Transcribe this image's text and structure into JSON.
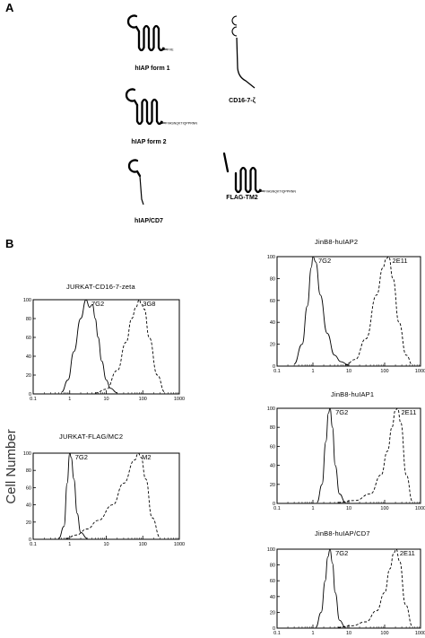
{
  "panel_a": {
    "letter": "A",
    "constructs": [
      {
        "id": "hiap1",
        "name": "hIAP form 1",
        "tail_seq": "FVE",
        "loop": true,
        "tm_segments": 5,
        "stalk": false,
        "extra_loops": 0
      },
      {
        "id": "cd16",
        "name": "CD16-7-ζ",
        "tail_seq": "",
        "loop": false,
        "tm_segments": 0,
        "stalk": true,
        "extra_loops": 2
      },
      {
        "id": "hiap2",
        "name": "hIAP form 2",
        "tail_seq": "FVASNQKTIQPPRNN",
        "loop": true,
        "tm_segments": 5,
        "stalk": false,
        "extra_loops": 0
      },
      {
        "id": "flag",
        "name": "FLAG-TM2",
        "tail_seq": "FVASNQKTIQPPRNN",
        "loop": false,
        "tm_segments": 5,
        "stalk": false,
        "extra_loops": 0
      },
      {
        "id": "hiapcd7",
        "name": "hIAP/CD7",
        "tail_seq": "",
        "loop": true,
        "tm_segments": 0,
        "stalk": true,
        "extra_loops": 0
      }
    ]
  },
  "panel_b": {
    "letter": "B",
    "y_axis_label": "Cell Number"
  },
  "chart_data": [
    {
      "id": "jurkat_cd16",
      "type": "line",
      "title": "JURKAT-CD16-7-zeta",
      "xscale": "log",
      "xlim": [
        0.1,
        1000
      ],
      "ylim": [
        0,
        100
      ],
      "xticks": [
        "0.1",
        "1",
        "10",
        "100",
        "1000"
      ],
      "yticks": [
        "0",
        "20",
        "40",
        "60",
        "80",
        "100"
      ],
      "series": [
        {
          "name": "7G2",
          "style": "solid",
          "x": [
            0.6,
            0.9,
            1.3,
            2.0,
            2.8,
            3.5,
            4.2,
            5.0,
            6.0,
            7.5,
            10,
            13,
            20
          ],
          "y": [
            2,
            15,
            45,
            80,
            100,
            92,
            95,
            80,
            60,
            35,
            15,
            6,
            1
          ]
        },
        {
          "name": "3G8",
          "style": "dashed",
          "x": [
            5,
            10,
            20,
            35,
            50,
            65,
            80,
            90,
            110,
            150,
            250,
            400
          ],
          "y": [
            1,
            5,
            25,
            55,
            80,
            92,
            100,
            96,
            90,
            60,
            20,
            2
          ]
        }
      ]
    },
    {
      "id": "jurkat_flag",
      "type": "line",
      "title": "JURKAT-FLAG/MC2",
      "xscale": "log",
      "xlim": [
        0.1,
        1000
      ],
      "ylim": [
        0,
        100
      ],
      "xticks": [
        "0.1",
        "1",
        "10",
        "100",
        "1000"
      ],
      "yticks": [
        "0",
        "20",
        "40",
        "60",
        "80",
        "100"
      ],
      "series": [
        {
          "name": "7G2",
          "style": "solid",
          "x": [
            0.5,
            0.7,
            0.85,
            1.0,
            1.1,
            1.3,
            1.6,
            2.0,
            3.0
          ],
          "y": [
            1,
            15,
            65,
            100,
            95,
            70,
            30,
            8,
            1
          ]
        },
        {
          "name": "M2",
          "style": "dashed",
          "x": [
            0.8,
            1.5,
            3,
            6,
            15,
            30,
            60,
            75,
            90,
            120,
            180,
            300
          ],
          "y": [
            1,
            5,
            12,
            22,
            40,
            65,
            92,
            100,
            95,
            70,
            25,
            2
          ]
        }
      ]
    },
    {
      "id": "jinb8_2",
      "type": "line",
      "title": "JinB8-huIAP2",
      "xscale": "log",
      "xlim": [
        0.1,
        1000
      ],
      "ylim": [
        0,
        100
      ],
      "xticks": [
        "0.1",
        "1",
        "10",
        "100",
        "1000"
      ],
      "yticks": [
        "0",
        "20",
        "40",
        "60",
        "80",
        "100"
      ],
      "series": [
        {
          "name": "7G2",
          "style": "solid",
          "x": [
            0.3,
            0.5,
            0.7,
            0.9,
            1.0,
            1.2,
            1.6,
            2.5,
            4,
            6,
            10
          ],
          "y": [
            2,
            20,
            55,
            90,
            100,
            95,
            65,
            30,
            10,
            4,
            1
          ]
        },
        {
          "name": "2E11",
          "style": "dashed",
          "x": [
            8,
            15,
            30,
            60,
            90,
            110,
            130,
            170,
            250,
            400,
            600
          ],
          "y": [
            1,
            6,
            25,
            65,
            90,
            98,
            100,
            80,
            40,
            10,
            1
          ]
        }
      ]
    },
    {
      "id": "jinb8_1",
      "type": "line",
      "title": "JinB8-huIAP1",
      "xscale": "log",
      "xlim": [
        0.1,
        1000
      ],
      "ylim": [
        0,
        100
      ],
      "xticks": [
        "0.1",
        "1",
        "10",
        "100",
        "1000"
      ],
      "yticks": [
        "0",
        "20",
        "40",
        "60",
        "80",
        "100"
      ],
      "series": [
        {
          "name": "7G2",
          "style": "solid",
          "x": [
            1.3,
            1.8,
            2.3,
            2.7,
            3.0,
            3.5,
            4.2,
            5.5,
            8
          ],
          "y": [
            1,
            20,
            65,
            95,
            100,
            80,
            40,
            10,
            1
          ]
        },
        {
          "name": "2E11",
          "style": "dashed",
          "x": [
            5,
            15,
            40,
            80,
            120,
            160,
            200,
            230,
            280,
            400,
            600
          ],
          "y": [
            1,
            3,
            10,
            30,
            55,
            80,
            98,
            100,
            85,
            30,
            2
          ]
        }
      ]
    },
    {
      "id": "jinb8_cd7",
      "type": "line",
      "title": "JinB8-huIAP/CD7",
      "xscale": "log",
      "xlim": [
        0.1,
        1000
      ],
      "ylim": [
        0,
        100
      ],
      "xticks": [
        "0.1",
        "1",
        "10",
        "100",
        "1000"
      ],
      "yticks": [
        "0",
        "20",
        "40",
        "60",
        "80",
        "100"
      ],
      "series": [
        {
          "name": "7G2",
          "style": "solid",
          "x": [
            1.2,
            1.7,
            2.2,
            2.6,
            3.0,
            3.5,
            4.2,
            5.5,
            8
          ],
          "y": [
            1,
            20,
            60,
            90,
            100,
            82,
            45,
            10,
            1
          ]
        },
        {
          "name": "2E11",
          "style": "dashed",
          "x": [
            5,
            12,
            30,
            60,
            100,
            140,
            180,
            210,
            260,
            380,
            600
          ],
          "y": [
            1,
            3,
            8,
            22,
            45,
            75,
            95,
            100,
            85,
            30,
            2
          ]
        }
      ]
    }
  ]
}
